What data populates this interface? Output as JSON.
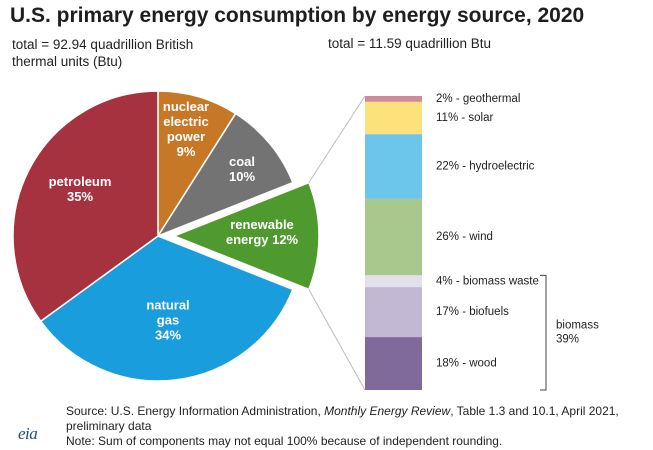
{
  "title": "U.S. primary energy consumption by energy source, 2020",
  "total_left": "total = 92.94 quadrillion British thermal units (Btu)",
  "total_right": "total = 11.59 quadrillion Btu",
  "footer": {
    "source_prefix": "Source: U.S. Energy Information Administration, ",
    "source_italic": "Monthly Energy Review",
    "source_suffix": ", Table 1.3 and 10.1, April 2021, preliminary data",
    "note": "Note: Sum of components may not equal 100% because of independent rounding."
  },
  "logo_text": "eia",
  "chart_data": [
    {
      "type": "pie",
      "slices": [
        {
          "label_lines": [
            "nuclear",
            "electric",
            "power",
            "9%"
          ],
          "value": 9,
          "color": "#c77826"
        },
        {
          "label_lines": [
            "coal",
            "10%"
          ],
          "value": 10,
          "color": "#737373"
        },
        {
          "label_lines": [
            "renewable",
            "energy 12%"
          ],
          "value": 12,
          "color": "#4f9a2e",
          "exploded": true
        },
        {
          "label_lines": [
            "natural",
            "gas",
            "34%"
          ],
          "value": 34,
          "color": "#1a9ddd"
        },
        {
          "label_lines": [
            "petroleum",
            "35%"
          ],
          "value": 35,
          "color": "#a7323f"
        }
      ]
    },
    {
      "type": "bar",
      "stacked": true,
      "segments": [
        {
          "label": "2% - geothermal",
          "value": 2,
          "color": "#d28a9a"
        },
        {
          "label": "11% - solar",
          "value": 11,
          "color": "#fde17b"
        },
        {
          "label": "22% - hydroelectric",
          "value": 22,
          "color": "#6cc5ea"
        },
        {
          "label": "26% - wind",
          "value": 26,
          "color": "#a8c88e"
        },
        {
          "label": "4% - biomass waste",
          "value": 4,
          "color": "#e3dfeb"
        },
        {
          "label": "17% - biofuels",
          "value": 17,
          "color": "#c2b8d4"
        },
        {
          "label": "18% - wood",
          "value": 18,
          "color": "#7f6a9b"
        }
      ],
      "group_label": [
        "biomass",
        "39%"
      ]
    }
  ]
}
